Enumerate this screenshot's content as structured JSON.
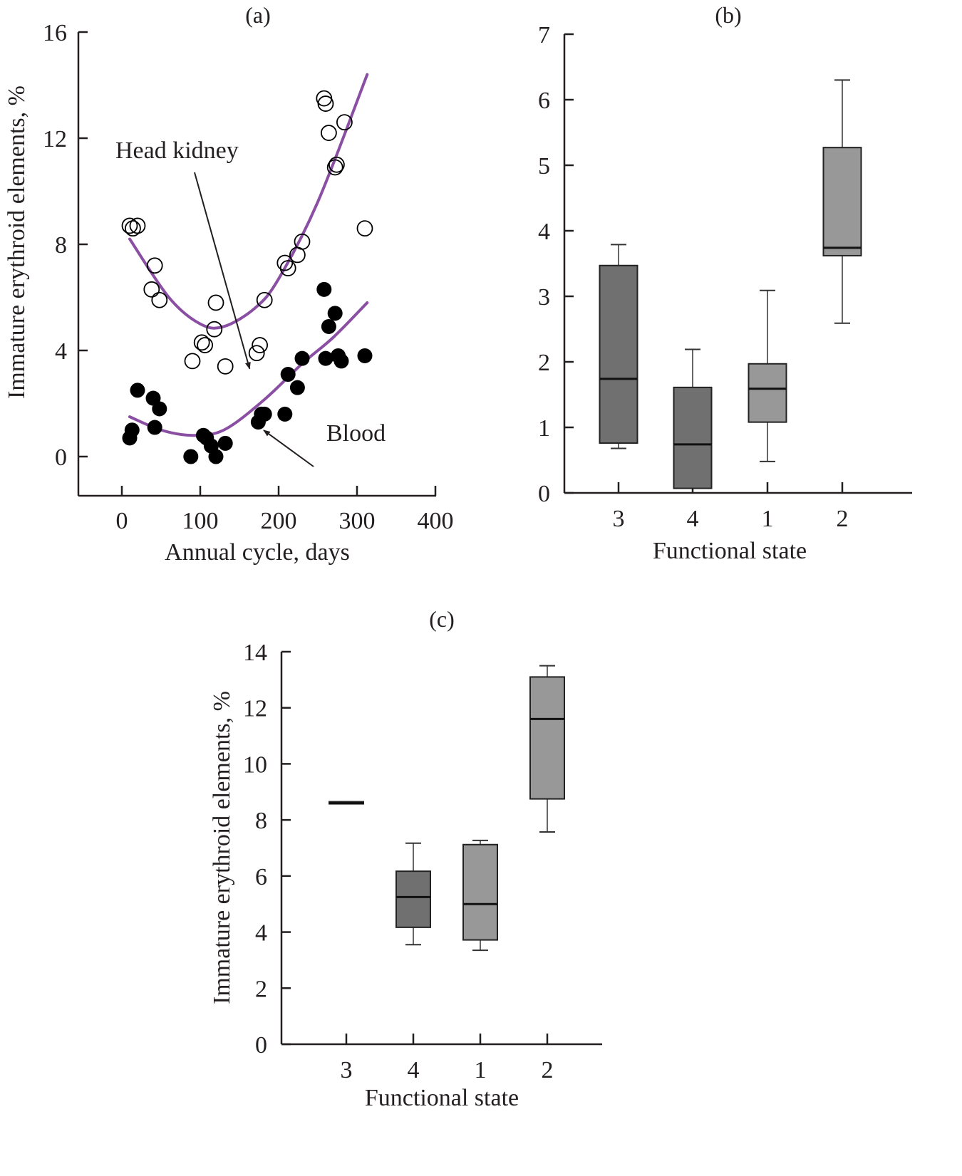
{
  "chart_data": [
    {
      "id": "a",
      "type": "scatter",
      "panel_label": "(a)",
      "xlabel": "Annual cycle, days",
      "ylabel": "Immature erythroid elements, %",
      "xlim": [
        -55,
        400
      ],
      "ylim": [
        -1.5,
        16
      ],
      "xticks": [
        0,
        100,
        200,
        300,
        400
      ],
      "yticks": [
        0,
        4,
        8,
        12,
        16
      ],
      "grid": false,
      "fit_color": "#8a4fa3",
      "series": [
        {
          "name": "Head kidney",
          "marker": "open-circle",
          "points": [
            [
              10,
              8.7
            ],
            [
              14,
              8.6
            ],
            [
              20,
              8.7
            ],
            [
              42,
              7.2
            ],
            [
              38,
              6.3
            ],
            [
              48,
              5.9
            ],
            [
              90,
              3.6
            ],
            [
              102,
              4.3
            ],
            [
              106,
              4.2
            ],
            [
              118,
              4.8
            ],
            [
              120,
              5.8
            ],
            [
              132,
              3.4
            ],
            [
              172,
              3.9
            ],
            [
              176,
              4.2
            ],
            [
              182,
              5.9
            ],
            [
              208,
              7.3
            ],
            [
              212,
              7.1
            ],
            [
              224,
              7.6
            ],
            [
              230,
              8.1
            ],
            [
              258,
              13.5
            ],
            [
              260,
              13.3
            ],
            [
              264,
              12.2
            ],
            [
              284,
              12.6
            ],
            [
              272,
              10.9
            ],
            [
              274,
              11.0
            ],
            [
              310,
              8.6
            ]
          ],
          "fit": {
            "type": "quadratic",
            "x_range": [
              10,
              313
            ],
            "points": [
              [
                10,
                8.2
              ],
              [
                60,
                6.0
              ],
              [
                100,
                5.0
              ],
              [
                130,
                4.9
              ],
              [
                170,
                5.6
              ],
              [
                200,
                6.7
              ],
              [
                250,
                9.6
              ],
              [
                313,
                14.4
              ]
            ]
          }
        },
        {
          "name": "Blood",
          "marker": "filled-circle",
          "points": [
            [
              10,
              0.7
            ],
            [
              13,
              1.0
            ],
            [
              20,
              2.5
            ],
            [
              40,
              2.2
            ],
            [
              42,
              1.1
            ],
            [
              48,
              1.8
            ],
            [
              88,
              0.0
            ],
            [
              104,
              0.8
            ],
            [
              108,
              0.7
            ],
            [
              114,
              0.4
            ],
            [
              120,
              0.0
            ],
            [
              132,
              0.5
            ],
            [
              174,
              1.3
            ],
            [
              178,
              1.6
            ],
            [
              182,
              1.6
            ],
            [
              208,
              1.6
            ],
            [
              212,
              3.1
            ],
            [
              224,
              2.6
            ],
            [
              230,
              3.7
            ],
            [
              258,
              6.3
            ],
            [
              260,
              3.7
            ],
            [
              264,
              4.9
            ],
            [
              272,
              5.4
            ],
            [
              276,
              3.8
            ],
            [
              280,
              3.6
            ],
            [
              310,
              3.8
            ]
          ],
          "fit": {
            "type": "quadratic",
            "x_range": [
              10,
              313
            ],
            "points": [
              [
                10,
                1.5
              ],
              [
                50,
                1.0
              ],
              [
                90,
                0.8
              ],
              [
                130,
                1.0
              ],
              [
                180,
                2.1
              ],
              [
                230,
                3.5
              ],
              [
                270,
                4.5
              ],
              [
                313,
                5.8
              ]
            ]
          }
        }
      ],
      "annotations": [
        {
          "text": "Head kidney",
          "arrow_to": [
            163,
            6.8
          ]
        },
        {
          "text": "Blood",
          "arrow_to": [
            175,
            1.0
          ]
        }
      ]
    },
    {
      "id": "b",
      "type": "box",
      "panel_label": "(b)",
      "xlabel": "Functional state",
      "ylabel": "",
      "ylim": [
        0,
        7
      ],
      "yticks": [
        0,
        1,
        2,
        3,
        4,
        5,
        6,
        7
      ],
      "categories": [
        "3",
        "4",
        "1",
        "2"
      ],
      "grid": false,
      "boxes": [
        {
          "category": "3",
          "whisker_low": 0.68,
          "q1": 0.76,
          "median": 1.74,
          "q3": 3.47,
          "whisker_high": 3.79,
          "fill": "#707070"
        },
        {
          "category": "4",
          "whisker_low": 0.07,
          "q1": 0.07,
          "median": 0.74,
          "q3": 1.61,
          "whisker_high": 2.19,
          "fill": "#707070"
        },
        {
          "category": "1",
          "whisker_low": 0.48,
          "q1": 1.08,
          "median": 1.59,
          "q3": 1.97,
          "whisker_high": 3.09,
          "fill": "#989898"
        },
        {
          "category": "2",
          "whisker_low": 2.59,
          "q1": 3.62,
          "median": 3.74,
          "q3": 5.27,
          "whisker_high": 6.3,
          "fill": "#989898"
        }
      ]
    },
    {
      "id": "c",
      "type": "box",
      "panel_label": "(c)",
      "xlabel": "Functional state",
      "ylabel": "Immature erythroid elements, %",
      "ylim": [
        0,
        14
      ],
      "yticks": [
        0,
        2,
        4,
        6,
        8,
        10,
        12,
        14
      ],
      "categories": [
        "3",
        "4",
        "1",
        "2"
      ],
      "grid": false,
      "boxes": [
        {
          "category": "3",
          "whisker_low": 8.6,
          "q1": 8.6,
          "median": 8.6,
          "q3": 8.65,
          "whisker_high": 8.65,
          "fill": "#3a3a3a"
        },
        {
          "category": "4",
          "whisker_low": 3.55,
          "q1": 4.17,
          "median": 5.25,
          "q3": 6.17,
          "whisker_high": 7.17,
          "fill": "#707070"
        },
        {
          "category": "1",
          "whisker_low": 3.35,
          "q1": 3.72,
          "median": 5.0,
          "q3": 7.12,
          "whisker_high": 7.27,
          "fill": "#989898"
        },
        {
          "category": "2",
          "whisker_low": 7.57,
          "q1": 8.75,
          "median": 11.6,
          "q3": 13.1,
          "whisker_high": 13.5,
          "fill": "#989898"
        }
      ]
    }
  ]
}
